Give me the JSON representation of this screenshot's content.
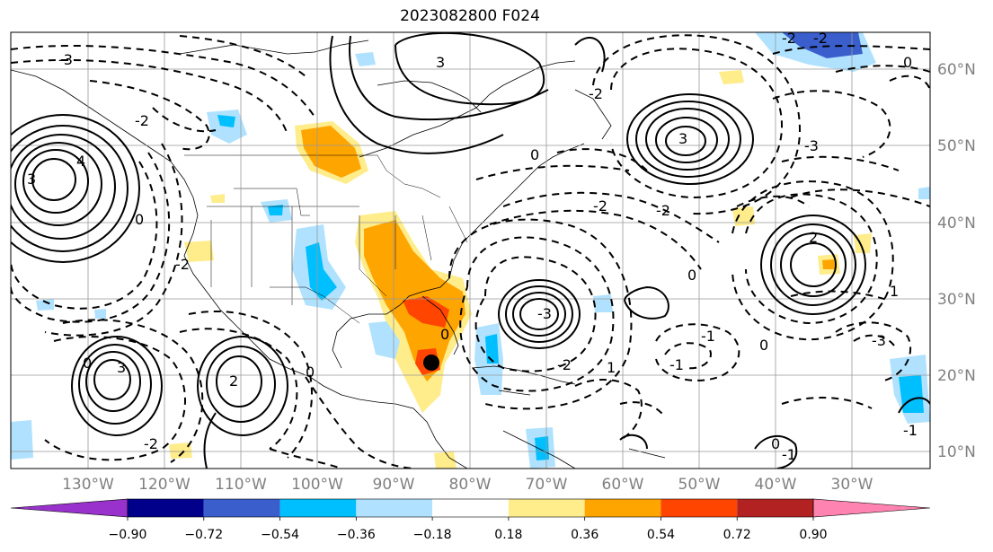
{
  "title": "2023082800 F024",
  "lon_labels": [
    "130°W",
    "120°W",
    "110°W",
    "100°W",
    "90°W",
    "80°W",
    "70°W",
    "60°W",
    "50°W",
    "40°W",
    "30°W"
  ],
  "lat_labels": [
    "60°N",
    "50°N",
    "40°N",
    "30°N",
    "20°N",
    "10°N"
  ],
  "colorbar": {
    "tick_labels": [
      "−0.90",
      "−0.72",
      "−0.54",
      "−0.36",
      "−0.18",
      "0.18",
      "0.36",
      "0.54",
      "0.72",
      "0.90"
    ],
    "colors": [
      "#9932cc",
      "#00008b",
      "#3a5fcd",
      "#00bfff",
      "#b0e2ff",
      "#ffffff",
      "#ffec8b",
      "#ffa500",
      "#ff4500",
      "#b22222",
      "#ff83b0"
    ]
  },
  "shading_colors": {
    "light_blue": "#b0e2ff",
    "blue": "#00bfff",
    "mid_blue": "#3a5fcd",
    "light_yellow": "#ffec8b",
    "orange": "#ffa500",
    "red_orange": "#ff4500"
  },
  "contour_labels": [
    "3",
    "-3",
    "-2",
    "2",
    "0",
    "-1",
    "1",
    "4"
  ],
  "storm_marker": "black-dot"
}
